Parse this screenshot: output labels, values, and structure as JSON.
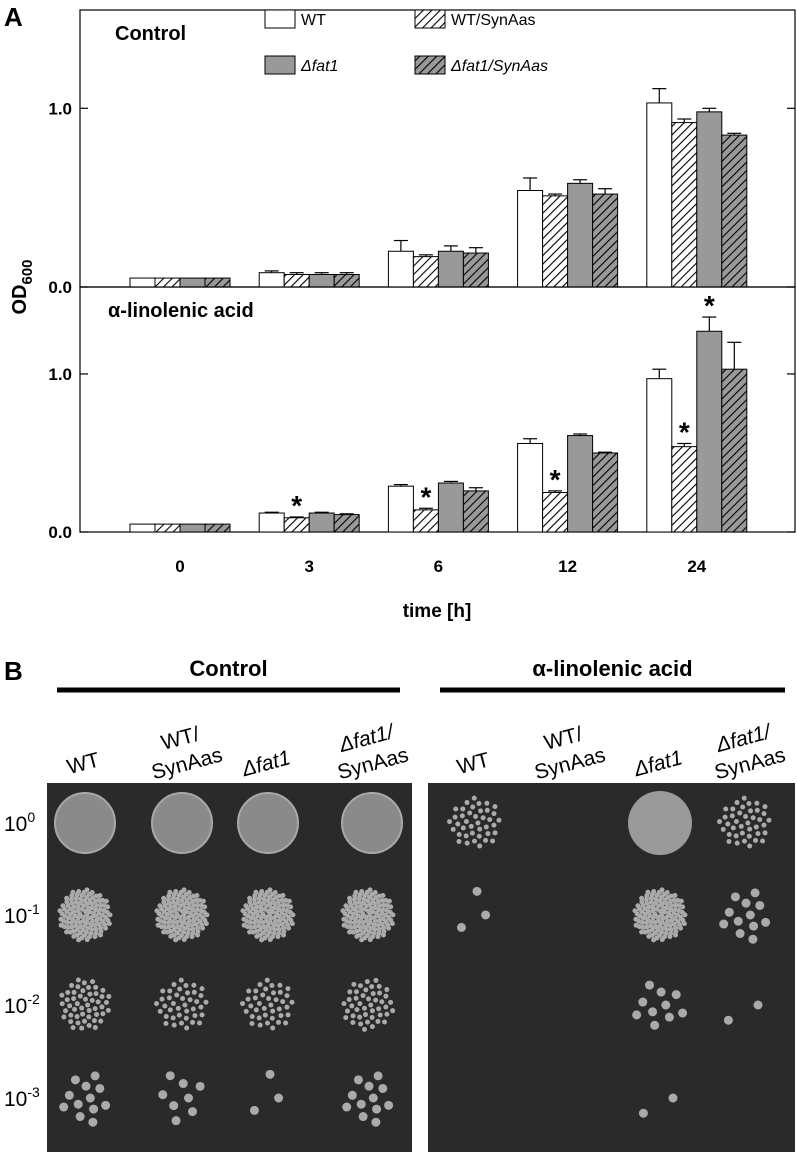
{
  "panel_a_label": "A",
  "chart_data": {
    "type": "bar",
    "categories": [
      "0",
      "3",
      "6",
      "12",
      "24"
    ],
    "x_label": "time [h]",
    "y_label": {
      "main": "OD",
      "sub": "600"
    },
    "series": [
      {
        "name": "WT",
        "color": "#ffffff",
        "pattern": "none"
      },
      {
        "name": "WT/SynAas",
        "color": "#ffffff",
        "pattern": "hatch"
      },
      {
        "name": "Δfat1",
        "color": "#999999",
        "pattern": "none"
      },
      {
        "name": "Δfat1/SynAas",
        "color": "#999999",
        "pattern": "hatch"
      }
    ],
    "panels": [
      {
        "title": "Control",
        "ylim": [
          0,
          1.55
        ],
        "yticks": [
          {
            "value": 0,
            "label": "0.0"
          },
          {
            "value": 1,
            "label": "1.0"
          }
        ],
        "series": [
          {
            "values": [
              0.05,
              0.08,
              0.2,
              0.54,
              1.03
            ],
            "errors": [
              0,
              0.01,
              0.06,
              0.07,
              0.08
            ],
            "markers": [
              null,
              null,
              null,
              null,
              null
            ]
          },
          {
            "values": [
              0.05,
              0.07,
              0.17,
              0.51,
              0.92
            ],
            "errors": [
              0,
              0.01,
              0.01,
              0.01,
              0.02
            ],
            "markers": [
              null,
              null,
              null,
              null,
              null
            ]
          },
          {
            "values": [
              0.05,
              0.07,
              0.2,
              0.58,
              0.98
            ],
            "errors": [
              0,
              0.01,
              0.03,
              0.02,
              0.02
            ],
            "markers": [
              null,
              null,
              null,
              null,
              null
            ]
          },
          {
            "values": [
              0.05,
              0.07,
              0.19,
              0.52,
              0.85
            ],
            "errors": [
              0,
              0.01,
              0.03,
              0.03,
              0.01
            ],
            "markers": [
              null,
              null,
              null,
              null,
              null
            ]
          }
        ]
      },
      {
        "title": "α-linolenic acid",
        "ylim": [
          0,
          1.55
        ],
        "yticks": [
          {
            "value": 0,
            "label": "0.0"
          },
          {
            "value": 1,
            "label": "1.0"
          }
        ],
        "series": [
          {
            "values": [
              0.05,
              0.12,
              0.29,
              0.56,
              0.97
            ],
            "errors": [
              0,
              0.005,
              0.01,
              0.03,
              0.06
            ],
            "markers": [
              null,
              null,
              null,
              null,
              null
            ]
          },
          {
            "values": [
              0.05,
              0.09,
              0.14,
              0.25,
              0.54
            ],
            "errors": [
              0,
              0.005,
              0.01,
              0.01,
              0.02
            ],
            "markers": [
              null,
              "*",
              "*",
              "*",
              "*"
            ]
          },
          {
            "values": [
              0.05,
              0.12,
              0.31,
              0.61,
              1.27
            ],
            "errors": [
              0,
              0.005,
              0.01,
              0.01,
              0.09
            ],
            "markers": [
              null,
              null,
              null,
              null,
              "*"
            ]
          },
          {
            "values": [
              0.05,
              0.11,
              0.26,
              0.5,
              1.03
            ],
            "errors": [
              0,
              0.005,
              0.02,
              0.005,
              0.17
            ],
            "markers": [
              null,
              null,
              null,
              null,
              null
            ]
          }
        ]
      }
    ]
  },
  "panel_b": {
    "label": "B",
    "groups": [
      {
        "title": "Control",
        "columns": [
          [
            "WT"
          ],
          [
            "WT/",
            "SynAas"
          ],
          [
            "Δfat1"
          ],
          [
            "Δfat1/",
            "SynAas"
          ]
        ]
      },
      {
        "title": "α-linolenic acid",
        "columns": [
          [
            "WT"
          ],
          [
            "WT/",
            "SynAas"
          ],
          [
            "Δfat1"
          ],
          [
            "Δfat1/",
            "SynAas"
          ]
        ]
      }
    ],
    "rows": [
      {
        "base": "10",
        "exp": "0"
      },
      {
        "base": "10",
        "exp": "-1"
      },
      {
        "base": "10",
        "exp": "-2"
      },
      {
        "base": "10",
        "exp": "-3"
      }
    ]
  }
}
